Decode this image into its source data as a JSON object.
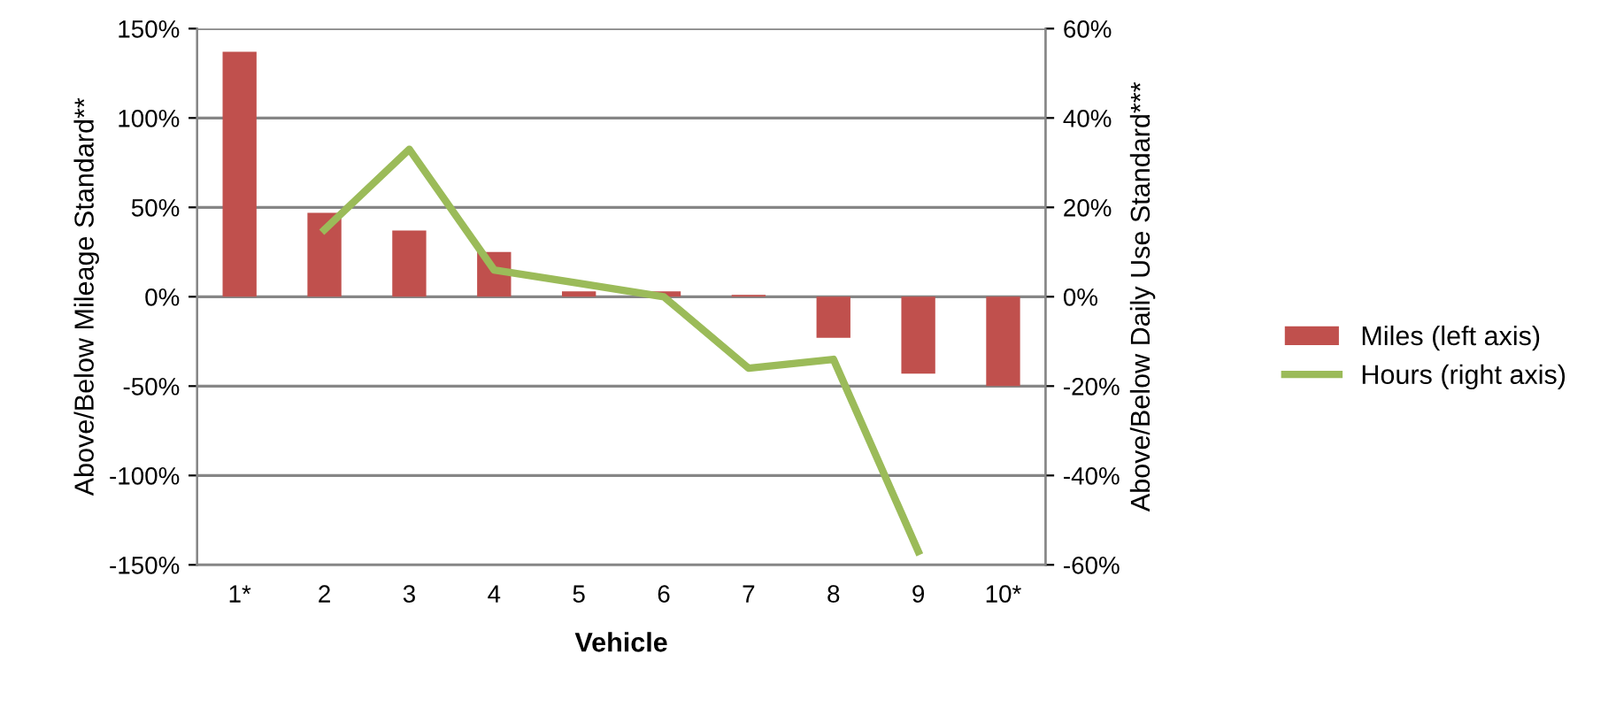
{
  "chart_data": {
    "type": "bar",
    "xlabel": "Vehicle",
    "ylabel": "Above/Below Mileage Standard**",
    "y2label": "Above/Below Daily Use Standard***",
    "categories": [
      "1*",
      "2",
      "3",
      "4",
      "5",
      "6",
      "7",
      "8",
      "9",
      "10*"
    ],
    "series": [
      {
        "name": "Miles (left axis)",
        "color": "#c0504d",
        "values": [
          137,
          47,
          37,
          25,
          3,
          3,
          1,
          -23,
          -43,
          -50
        ]
      },
      {
        "name": "Hours (right axis)",
        "type": "line",
        "axis": "y2",
        "color": "#9bbb59",
        "values": [
          null,
          15,
          33,
          6,
          3,
          0,
          -16,
          -14,
          -57,
          null
        ]
      }
    ],
    "ylim": [
      -150,
      150
    ],
    "yticks": [
      {
        "value": -150,
        "label": "-150%"
      },
      {
        "value": -100,
        "label": "-100%"
      },
      {
        "value": -50,
        "label": "-50%"
      },
      {
        "value": 0,
        "label": "0%"
      },
      {
        "value": 50,
        "label": "50%"
      },
      {
        "value": 100,
        "label": "100%"
      },
      {
        "value": 150,
        "label": "150%"
      }
    ],
    "y2lim": [
      -60,
      60
    ],
    "y2ticks": [
      {
        "value": -60,
        "label": "-60%"
      },
      {
        "value": -40,
        "label": "-40%"
      },
      {
        "value": -20,
        "label": "-20%"
      },
      {
        "value": 0,
        "label": "0%"
      },
      {
        "value": 20,
        "label": "20%"
      },
      {
        "value": 40,
        "label": "40%"
      },
      {
        "value": 60,
        "label": "60%"
      }
    ],
    "grid": "y",
    "legend": "right"
  }
}
